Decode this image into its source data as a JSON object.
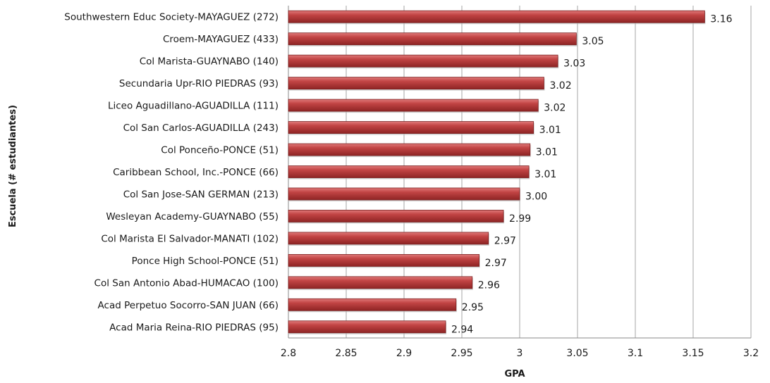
{
  "chart_data": {
    "type": "bar",
    "orientation": "horizontal",
    "title": "",
    "xlabel": "GPA",
    "ylabel": "Escuela (# estudiantes)",
    "xlim": [
      2.8,
      3.2
    ],
    "x_ticks": [
      "2.8",
      "2.85",
      "2.9",
      "2.95",
      "3",
      "3.05",
      "3.1",
      "3.15",
      "3.2"
    ],
    "grid": "vertical",
    "legend": "none",
    "bar_color": "#b83a3a",
    "categories": [
      "Southwestern Educ Society-MAYAGUEZ (272)",
      "Croem-MAYAGUEZ (433)",
      "Col Marista-GUAYNABO (140)",
      "Secundaria Upr-RIO PIEDRAS (93)",
      "Liceo Aguadillano-AGUADILLA (111)",
      "Col San Carlos-AGUADILLA (243)",
      "Col Ponceño-PONCE (51)",
      "Caribbean School, Inc.-PONCE (66)",
      "Col San Jose-SAN GERMAN (213)",
      "Wesleyan Academy-GUAYNABO (55)",
      "Col Marista El Salvador-MANATI (102)",
      "Ponce High School-PONCE (51)",
      "Col San Antonio Abad-HUMACAO (100)",
      "Acad Perpetuo Socorro-SAN JUAN (66)",
      "Acad Maria Reina-RIO PIEDRAS (95)"
    ],
    "values": [
      3.16,
      3.049,
      3.033,
      3.021,
      3.016,
      3.012,
      3.009,
      3.008,
      3.0,
      2.986,
      2.973,
      2.965,
      2.959,
      2.945,
      2.936
    ],
    "value_labels": [
      "3.16",
      "3.05",
      "3.03",
      "3.02",
      "3.02",
      "3.01",
      "3.01",
      "3.01",
      "3.00",
      "2.99",
      "2.97",
      "2.97",
      "2.96",
      "2.95",
      "2.94"
    ]
  }
}
